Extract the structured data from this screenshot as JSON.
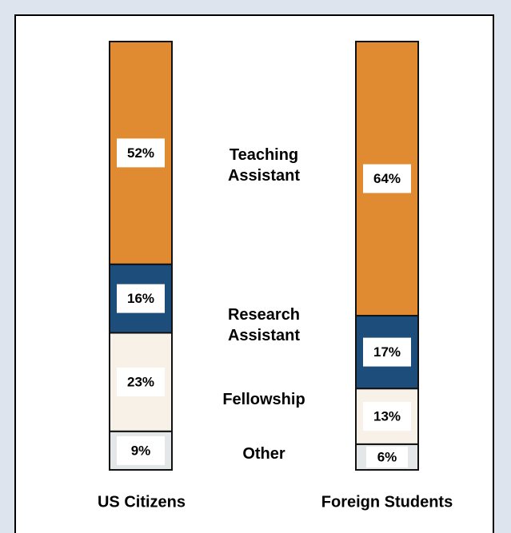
{
  "chart_data": {
    "type": "stacked_bar",
    "categories": [
      "US Citizens",
      "Foreign Students"
    ],
    "series": [
      {
        "name": "Other",
        "color": "#e4e7e8",
        "values": [
          9,
          6
        ],
        "value_labels": [
          "9%",
          "6%"
        ]
      },
      {
        "name": "Fellowship",
        "color": "#f7f1e7",
        "values": [
          23,
          13
        ],
        "value_labels": [
          "23%",
          "13%"
        ]
      },
      {
        "name": "Research Assistant",
        "color": "#1d4e7b",
        "values": [
          16,
          17
        ],
        "value_labels": [
          "16%",
          "17%"
        ]
      },
      {
        "name": "Teaching Assistant",
        "color": "#e08a31",
        "values": [
          52,
          64
        ],
        "value_labels": [
          "52%",
          "64%"
        ]
      }
    ]
  }
}
